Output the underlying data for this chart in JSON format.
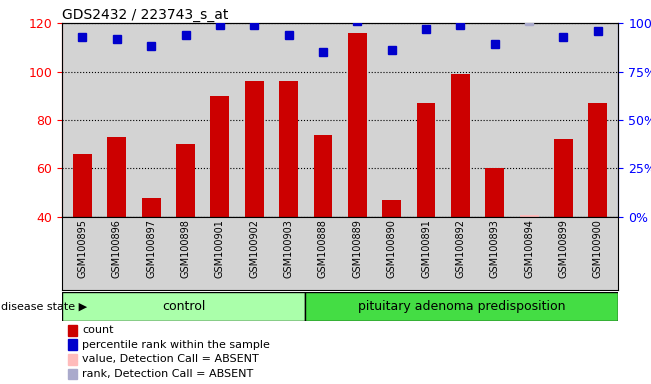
{
  "title": "GDS2432 / 223743_s_at",
  "categories": [
    "GSM100895",
    "GSM100896",
    "GSM100897",
    "GSM100898",
    "GSM100901",
    "GSM100902",
    "GSM100903",
    "GSM100888",
    "GSM100889",
    "GSM100890",
    "GSM100891",
    "GSM100892",
    "GSM100893",
    "GSM100894",
    "GSM100899",
    "GSM100900"
  ],
  "bar_values": [
    66,
    73,
    48,
    70,
    90,
    96,
    96,
    74,
    116,
    47,
    87,
    99,
    60,
    41,
    72,
    87
  ],
  "absent_bar_indices": [
    13
  ],
  "absent_bar_color": "#ffbbbb",
  "percentile_values": [
    93,
    92,
    88,
    94,
    99,
    99,
    94,
    85,
    101,
    86,
    97,
    99,
    89,
    101,
    93,
    96
  ],
  "percentile_absent_indices": [
    13
  ],
  "percentile_absent_color": "#aaaacc",
  "percentile_color": "#0000cc",
  "bar_color": "#cc0000",
  "ylim_left": [
    40,
    120
  ],
  "ylim_right": [
    0,
    100
  ],
  "yticks_left": [
    40,
    60,
    80,
    100,
    120
  ],
  "yticks_right": [
    0,
    25,
    50,
    75,
    100
  ],
  "ytick_labels_right": [
    "0%",
    "25%",
    "50%",
    "75%",
    "100%"
  ],
  "control_count": 7,
  "control_label": "control",
  "disease_label": "pituitary adenoma predisposition",
  "disease_state_label": "disease state ▶",
  "legend_items": [
    {
      "label": "count",
      "color": "#cc0000"
    },
    {
      "label": "percentile rank within the sample",
      "color": "#0000cc"
    },
    {
      "label": "value, Detection Call = ABSENT",
      "color": "#ffbbbb"
    },
    {
      "label": "rank, Detection Call = ABSENT",
      "color": "#aaaacc"
    }
  ],
  "bar_width": 0.55,
  "marker_size": 6,
  "background_color": "#d3d3d3",
  "control_group_color": "#aaffaa",
  "disease_group_color": "#44dd44"
}
